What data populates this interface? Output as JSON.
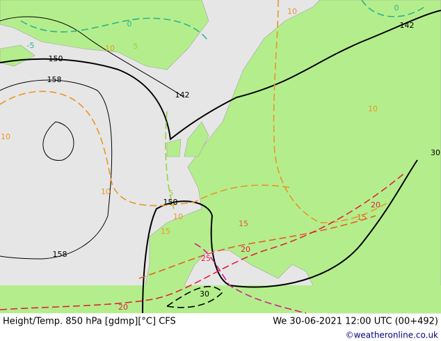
{
  "header": {
    "title": "Height/Temp. 850 hPa [gdmp][°C] CFS",
    "datetime": "We 30-06-2021 12:00 UTC (00+492)",
    "credit": "©weatheronline.co.uk"
  },
  "contour_labels": [
    "150",
    "158",
    "142",
    "142",
    "150",
    "158",
    "10",
    "10",
    "10",
    "10",
    "10",
    "10",
    "5",
    "5",
    "0",
    "0",
    "-5",
    "15",
    "15",
    "15",
    "20",
    "20",
    "20",
    "25",
    "30",
    "30"
  ]
}
